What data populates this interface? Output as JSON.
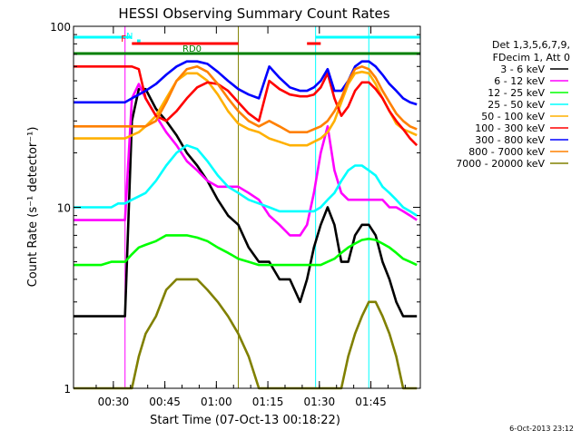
{
  "chart_data": {
    "type": "line",
    "title": "HESSI Observing Summary Count Rates",
    "xlabel": "Start Time (07-Oct-13 00:18:22)",
    "ylabel": "Count Rate (s⁻¹ detector⁻¹)",
    "yscale": "log",
    "ylim": [
      1,
      100
    ],
    "xlim_minutes": [
      0,
      101
    ],
    "x_ticks": [
      {
        "label": "00:30",
        "min": 11.6
      },
      {
        "label": "00:45",
        "min": 26.6
      },
      {
        "label": "01:00",
        "min": 41.6
      },
      {
        "label": "01:15",
        "min": 56.6
      },
      {
        "label": "01:30",
        "min": 71.6
      },
      {
        "label": "01:45",
        "min": 86.6
      }
    ],
    "y_ticks": [
      {
        "label": "1",
        "v": 1
      },
      {
        "label": "10",
        "v": 10
      },
      {
        "label": "100",
        "v": 100
      }
    ],
    "legend_title": [
      "Det 1,3,5,6,7,9,",
      "FDecim 1, Att 0"
    ],
    "legend_position": "right",
    "series": [
      {
        "name": "3 - 6 keV",
        "color": "#000000",
        "x": [
          0,
          4,
          8,
          11,
          13,
          15,
          17,
          19,
          21,
          24,
          27,
          30,
          33,
          36,
          39,
          42,
          45,
          48,
          51,
          54,
          57,
          60,
          63,
          66,
          68,
          70,
          72,
          74,
          76,
          78,
          80,
          82,
          84,
          86,
          88,
          90,
          92,
          94,
          96,
          98,
          100
        ],
        "y": [
          2.5,
          2.5,
          2.5,
          2.5,
          2.5,
          2.5,
          30,
          45,
          45,
          35,
          30,
          25,
          20,
          17,
          14,
          11,
          9,
          8,
          6,
          5,
          5,
          4,
          4,
          3,
          4,
          6,
          8,
          10,
          8,
          5,
          5,
          7,
          8,
          8,
          7,
          5,
          4,
          3,
          2.5,
          2.5,
          2.5
        ]
      },
      {
        "name": "6 - 12 keV",
        "color": "#ff00ff",
        "x": [
          0,
          4,
          8,
          11,
          13,
          15,
          17,
          19,
          21,
          24,
          27,
          30,
          33,
          36,
          39,
          42,
          45,
          48,
          51,
          54,
          57,
          60,
          63,
          66,
          68,
          70,
          72,
          74,
          76,
          78,
          80,
          82,
          84,
          86,
          88,
          90,
          92,
          94,
          96,
          98,
          100
        ],
        "y": [
          8.5,
          8.5,
          8.5,
          8.5,
          8.5,
          8.5,
          40,
          48,
          40,
          32,
          26,
          22,
          18,
          16,
          14,
          13,
          13,
          13,
          12,
          11,
          9,
          8,
          7,
          7,
          8,
          12,
          20,
          28,
          16,
          12,
          11,
          11,
          11,
          11,
          11,
          11,
          10,
          10,
          9.5,
          9,
          8.5
        ]
      },
      {
        "name": "12 - 25 keV",
        "color": "#00ff00",
        "x": [
          0,
          4,
          8,
          11,
          13,
          15,
          17,
          19,
          21,
          24,
          27,
          30,
          33,
          36,
          39,
          42,
          45,
          48,
          51,
          54,
          57,
          60,
          63,
          66,
          68,
          70,
          72,
          74,
          76,
          78,
          80,
          82,
          84,
          86,
          88,
          90,
          92,
          94,
          96,
          98,
          100
        ],
        "y": [
          4.8,
          4.8,
          4.8,
          5,
          5,
          5,
          5.5,
          6,
          6.2,
          6.5,
          7,
          7,
          7,
          6.8,
          6.5,
          6,
          5.6,
          5.2,
          5,
          4.8,
          4.8,
          4.8,
          4.8,
          4.8,
          4.8,
          4.8,
          4.8,
          5,
          5.2,
          5.6,
          6,
          6.3,
          6.6,
          6.7,
          6.6,
          6.3,
          6,
          5.6,
          5.2,
          5,
          4.8
        ]
      },
      {
        "name": "25 - 50 keV",
        "color": "#00ffff",
        "x": [
          0,
          4,
          8,
          11,
          13,
          15,
          17,
          19,
          21,
          24,
          27,
          30,
          33,
          36,
          39,
          42,
          45,
          48,
          51,
          54,
          57,
          60,
          63,
          66,
          68,
          70,
          72,
          74,
          76,
          78,
          80,
          82,
          84,
          86,
          88,
          90,
          92,
          94,
          96,
          98,
          100
        ],
        "y": [
          10,
          10,
          10,
          10,
          10.5,
          10.5,
          11,
          11.5,
          12,
          14,
          17,
          20,
          22,
          21,
          18,
          15,
          13,
          12,
          11,
          10.5,
          10,
          9.5,
          9.5,
          9.5,
          9.5,
          9.5,
          10,
          11,
          12,
          14,
          16,
          17,
          17,
          16,
          15,
          13,
          12,
          11,
          10,
          9.5,
          9
        ]
      },
      {
        "name": "50 - 100 keV",
        "color": "#ffb000",
        "x": [
          0,
          4,
          8,
          11,
          13,
          15,
          17,
          19,
          21,
          24,
          27,
          30,
          33,
          36,
          39,
          42,
          45,
          48,
          51,
          54,
          57,
          60,
          63,
          66,
          68,
          70,
          72,
          74,
          76,
          78,
          80,
          82,
          84,
          86,
          88,
          90,
          92,
          94,
          96,
          98,
          100
        ],
        "y": [
          24,
          24,
          24,
          24,
          24,
          24,
          25,
          26,
          28,
          32,
          40,
          50,
          55,
          55,
          50,
          42,
          34,
          29,
          27,
          26,
          24,
          23,
          22,
          22,
          22,
          23,
          24,
          26,
          30,
          38,
          48,
          55,
          56,
          55,
          48,
          40,
          34,
          29,
          27,
          26,
          25
        ]
      },
      {
        "name": "100 - 300 keV",
        "color": "#ff0000",
        "x": [
          0,
          4,
          8,
          11,
          13,
          15,
          17,
          19,
          21,
          24,
          27,
          30,
          33,
          36,
          39,
          42,
          45,
          48,
          51,
          54,
          57,
          60,
          63,
          66,
          68,
          70,
          72,
          74,
          76,
          78,
          80,
          82,
          84,
          86,
          88,
          90,
          92,
          94,
          96,
          98,
          100
        ],
        "y": [
          60,
          60,
          60,
          60,
          60,
          60,
          60,
          58,
          40,
          32,
          30,
          34,
          40,
          46,
          49,
          48,
          44,
          38,
          33,
          30,
          50,
          45,
          42,
          41,
          41,
          42,
          46,
          55,
          40,
          32,
          36,
          44,
          49,
          49,
          45,
          40,
          34,
          30,
          27,
          24,
          22
        ]
      },
      {
        "name": "300 - 800 keV",
        "color": "#0000ff",
        "x": [
          0,
          4,
          8,
          11,
          13,
          15,
          17,
          19,
          21,
          24,
          27,
          30,
          33,
          36,
          39,
          42,
          45,
          48,
          51,
          54,
          57,
          60,
          63,
          66,
          68,
          70,
          72,
          74,
          76,
          78,
          80,
          82,
          84,
          86,
          88,
          90,
          92,
          94,
          96,
          98,
          100
        ],
        "y": [
          38,
          38,
          38,
          38,
          38,
          38,
          40,
          42,
          44,
          48,
          54,
          60,
          64,
          64,
          62,
          56,
          50,
          45,
          42,
          40,
          60,
          52,
          46,
          44,
          44,
          46,
          50,
          58,
          44,
          44,
          50,
          60,
          64,
          64,
          60,
          54,
          48,
          44,
          40,
          38,
          37
        ]
      },
      {
        "name": "800 - 7000 keV",
        "color": "#ff8000",
        "x": [
          0,
          4,
          8,
          11,
          13,
          15,
          17,
          19,
          21,
          24,
          27,
          30,
          33,
          36,
          39,
          42,
          45,
          48,
          51,
          54,
          57,
          60,
          63,
          66,
          68,
          70,
          72,
          74,
          76,
          78,
          80,
          82,
          84,
          86,
          88,
          90,
          92,
          94,
          96,
          98,
          100
        ],
        "y": [
          28,
          28,
          28,
          28,
          28,
          28,
          28,
          28,
          28,
          30,
          38,
          50,
          58,
          60,
          56,
          48,
          40,
          34,
          30,
          28,
          30,
          28,
          26,
          26,
          26,
          27,
          28,
          30,
          34,
          40,
          50,
          58,
          60,
          58,
          52,
          44,
          38,
          33,
          30,
          28,
          27
        ]
      },
      {
        "name": "7000 - 20000 keV",
        "color": "#808000",
        "x": [
          0,
          4,
          8,
          11,
          13,
          15,
          17,
          19,
          21,
          24,
          27,
          30,
          33,
          36,
          39,
          42,
          45,
          48,
          51,
          54,
          57,
          60,
          63,
          66,
          68,
          70,
          72,
          74,
          76,
          78,
          80,
          82,
          84,
          86,
          88,
          90,
          92,
          94,
          96,
          98,
          100
        ],
        "y": [
          1,
          1,
          1,
          1,
          1,
          1,
          1,
          1.5,
          2,
          2.5,
          3.5,
          4,
          4,
          4,
          3.5,
          3,
          2.5,
          2,
          1.5,
          1,
          1,
          1,
          1,
          1,
          1,
          1,
          1,
          1,
          1,
          1,
          1.5,
          2,
          2.5,
          3,
          3,
          2.5,
          2,
          1.5,
          1,
          1,
          1
        ]
      }
    ],
    "flag_bars": [
      {
        "label": "",
        "color": "#00ffff",
        "segments": [
          [
            0,
            17
          ],
          [
            70.5,
            101
          ]
        ]
      },
      {
        "label": "F",
        "color": "#ff0000",
        "segments": [
          [
            17,
            48
          ],
          [
            68,
            72
          ]
        ]
      },
      {
        "label": "N",
        "color": "#00ffff",
        "segments": [
          [
            18.5,
            19.5
          ]
        ]
      },
      {
        "label": "RD0",
        "color": "#008000",
        "segments": [
          [
            0,
            101
          ]
        ]
      }
    ],
    "vertical_lines": [
      {
        "min": 15.0,
        "color": "#ff00ff"
      },
      {
        "min": 48.0,
        "color": "#808000"
      },
      {
        "min": 70.5,
        "color": "#00ffff"
      },
      {
        "min": 86.0,
        "color": "#00ffff"
      },
      {
        "min": 101.0,
        "color": "#00ffff"
      }
    ]
  },
  "footer": {
    "datestamp": "6-Oct-2013 23:12"
  }
}
